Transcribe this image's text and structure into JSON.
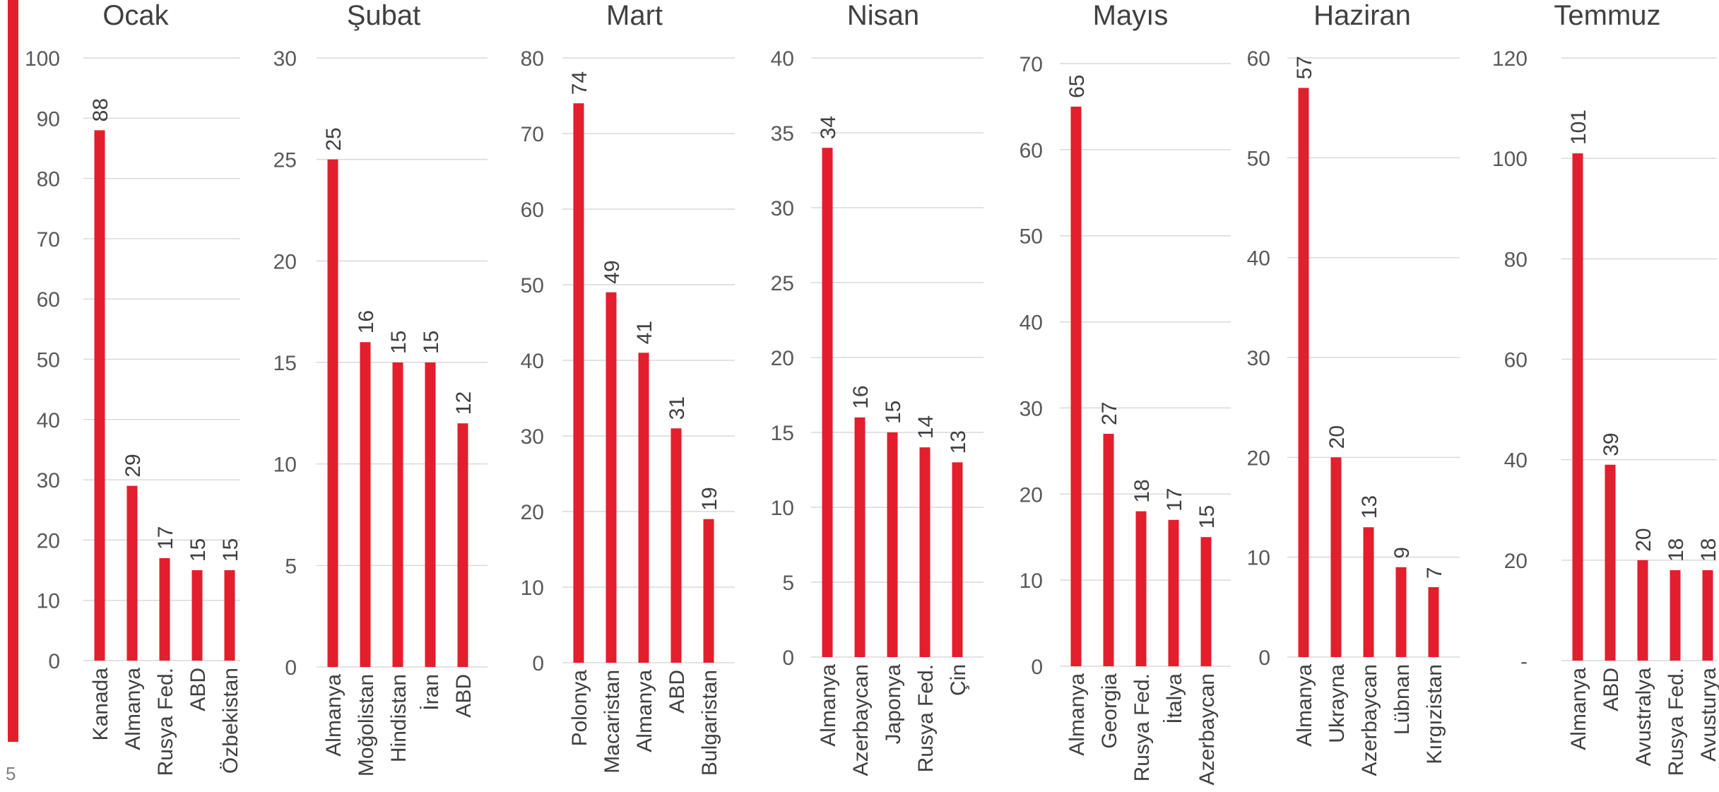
{
  "page": {
    "page_number": "5",
    "colors": {
      "bar": "#E31E2D",
      "accent": "#E31E2D",
      "grid": "#D9D9D9",
      "text": "#404040",
      "axis_text": "#595959"
    }
  },
  "chart_data": [
    {
      "type": "bar",
      "title": "Ocak",
      "categories": [
        "Kanada",
        "Almanya",
        "Rusya Fed.",
        "ABD",
        "Özbekistan"
      ],
      "values": [
        88,
        29,
        17,
        15,
        15
      ],
      "ylim": [
        0,
        100
      ],
      "yticks": [
        "0",
        "10",
        "20",
        "30",
        "40",
        "50",
        "60",
        "70",
        "80",
        "90",
        "100"
      ],
      "grid": true,
      "data_labels": true
    },
    {
      "type": "bar",
      "title": "Şubat",
      "categories": [
        "Almanya",
        "Moğolistan",
        "Hindistan",
        "İran",
        "ABD"
      ],
      "values": [
        25,
        16,
        15,
        15,
        12
      ],
      "ylim": [
        0,
        30
      ],
      "yticks": [
        "0",
        "5",
        "10",
        "15",
        "20",
        "25",
        "30"
      ],
      "grid": true,
      "data_labels": true
    },
    {
      "type": "bar",
      "title": "Mart",
      "categories": [
        "Polonya",
        "Macaristan",
        "Almanya",
        "ABD",
        "Bulgaristan"
      ],
      "values": [
        74,
        49,
        41,
        31,
        19
      ],
      "ylim": [
        0,
        80
      ],
      "yticks": [
        "0",
        "10",
        "20",
        "30",
        "40",
        "50",
        "60",
        "70",
        "80"
      ],
      "grid": true,
      "data_labels": true
    },
    {
      "type": "bar",
      "title": "Nisan",
      "categories": [
        "Almanya",
        "Azerbaycan",
        "Japonya",
        "Rusya Fed.",
        "Çin"
      ],
      "values": [
        34,
        16,
        15,
        14,
        13
      ],
      "ylim": [
        0,
        40
      ],
      "yticks": [
        "0",
        "5",
        "10",
        "15",
        "20",
        "25",
        "30",
        "35",
        "40"
      ],
      "grid": true,
      "data_labels": true
    },
    {
      "type": "bar",
      "title": "Mayıs",
      "categories": [
        "Almanya",
        "Georgia",
        "Rusya Fed.",
        "İtalya",
        "Azerbaycan"
      ],
      "values": [
        65,
        27,
        18,
        17,
        15
      ],
      "ylim": [
        0,
        70
      ],
      "yticks": [
        "0",
        "10",
        "20",
        "30",
        "40",
        "50",
        "60",
        "70"
      ],
      "grid": true,
      "data_labels": true
    },
    {
      "type": "bar",
      "title": "Haziran",
      "categories": [
        "Almanya",
        "Ukrayna",
        "Azerbaycan",
        "Lübnan",
        "Kırgızistan"
      ],
      "values": [
        57,
        20,
        13,
        9,
        7
      ],
      "ylim": [
        0,
        60
      ],
      "yticks": [
        "0",
        "10",
        "20",
        "30",
        "40",
        "50",
        "60"
      ],
      "grid": true,
      "data_labels": true
    },
    {
      "type": "bar",
      "title": "Temmuz",
      "categories": [
        "Almanya",
        "ABD",
        "Avustralya",
        "Rusya Fed.",
        "Avusturya"
      ],
      "values": [
        101,
        39,
        20,
        18,
        18
      ],
      "ylim": [
        0,
        120
      ],
      "yticks": [
        "-",
        "20",
        "40",
        "60",
        "80",
        "100",
        "120"
      ],
      "grid": true,
      "data_labels": true
    }
  ]
}
